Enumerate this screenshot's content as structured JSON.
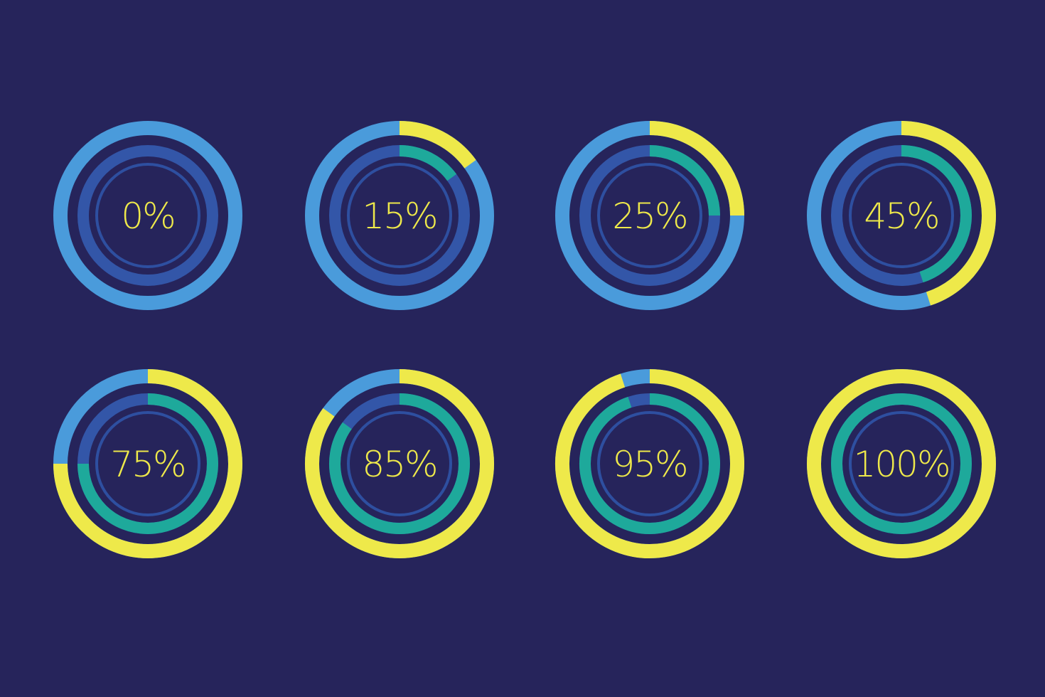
{
  "colors": {
    "background": "#26245B",
    "outer_track": "#4A9BDB",
    "outer_progress": "#EEE94A",
    "inner_track": "#3356A8",
    "inner_progress": "#1EA99B",
    "core_ring": "#2E4FA0",
    "label": "#EEE94A"
  },
  "chart_data": {
    "type": "progress-rings",
    "items": [
      {
        "value": 0,
        "label": "0%"
      },
      {
        "value": 15,
        "label": "15%"
      },
      {
        "value": 25,
        "label": "25%"
      },
      {
        "value": 45,
        "label": "45%"
      },
      {
        "value": 75,
        "label": "75%"
      },
      {
        "value": 85,
        "label": "85%"
      },
      {
        "value": 95,
        "label": "95%"
      },
      {
        "value": 100,
        "label": "100%"
      }
    ]
  }
}
